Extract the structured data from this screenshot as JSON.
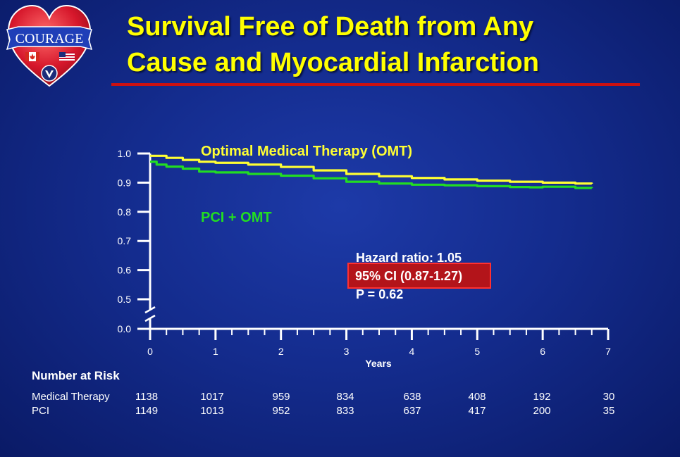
{
  "title": {
    "line1": "Survival Free of Death from Any",
    "line2": "Cause and Myocardial Infarction"
  },
  "logo": {
    "text": "COURAGE"
  },
  "colors": {
    "title": "#ffff00",
    "rule": "#cc1111",
    "omt": "#ffff33",
    "pci": "#22dd22",
    "ci_box": "#b3141a",
    "axis": "#ffffff"
  },
  "chart_data": {
    "type": "line",
    "xlabel": "Years",
    "ylabel": "",
    "xlim": [
      0,
      7
    ],
    "ylim": [
      0.0,
      1.0
    ],
    "x_ticks": [
      "0",
      "1",
      "2",
      "3",
      "4",
      "5",
      "6",
      "7"
    ],
    "y_ticks": [
      "0.0",
      "0.5",
      "0.6",
      "0.7",
      "0.8",
      "0.9",
      "1.0"
    ],
    "y_axis_break": true,
    "grid": false,
    "series": [
      {
        "name": "Optimal Medical Therapy (OMT)",
        "color": "#ffff33",
        "x": [
          0,
          0.25,
          0.5,
          0.75,
          1,
          1.5,
          2,
          2.5,
          3,
          3.5,
          4,
          4.5,
          5,
          5.5,
          6,
          6.5,
          6.75
        ],
        "y": [
          0.992,
          0.985,
          0.978,
          0.972,
          0.968,
          0.962,
          0.954,
          0.942,
          0.93,
          0.922,
          0.916,
          0.911,
          0.907,
          0.903,
          0.9,
          0.897,
          0.896
        ]
      },
      {
        "name": "PCI + OMT",
        "color": "#22dd22",
        "x": [
          0,
          0.1,
          0.25,
          0.5,
          0.75,
          1,
          1.5,
          2,
          2.5,
          3,
          3.5,
          4,
          4.5,
          5,
          5.5,
          5.8,
          6,
          6.5,
          6.75
        ],
        "y": [
          0.972,
          0.962,
          0.955,
          0.948,
          0.938,
          0.935,
          0.93,
          0.924,
          0.915,
          0.903,
          0.897,
          0.893,
          0.891,
          0.888,
          0.885,
          0.884,
          0.886,
          0.882,
          0.881
        ]
      }
    ],
    "annotations": {
      "hazard_ratio": "Hazard ratio: 1.05",
      "ci": "95% CI (0.87-1.27)",
      "p_value": "P = 0.62"
    }
  },
  "number_at_risk": {
    "heading": "Number at Risk",
    "rows": [
      {
        "label": "Medical Therapy",
        "values": [
          "1138",
          "1017",
          "959",
          "834",
          "638",
          "408",
          "192",
          "30"
        ]
      },
      {
        "label": "PCI",
        "values": [
          "1149",
          "1013",
          "952",
          "833",
          "637",
          "417",
          "200",
          "35"
        ]
      }
    ]
  }
}
